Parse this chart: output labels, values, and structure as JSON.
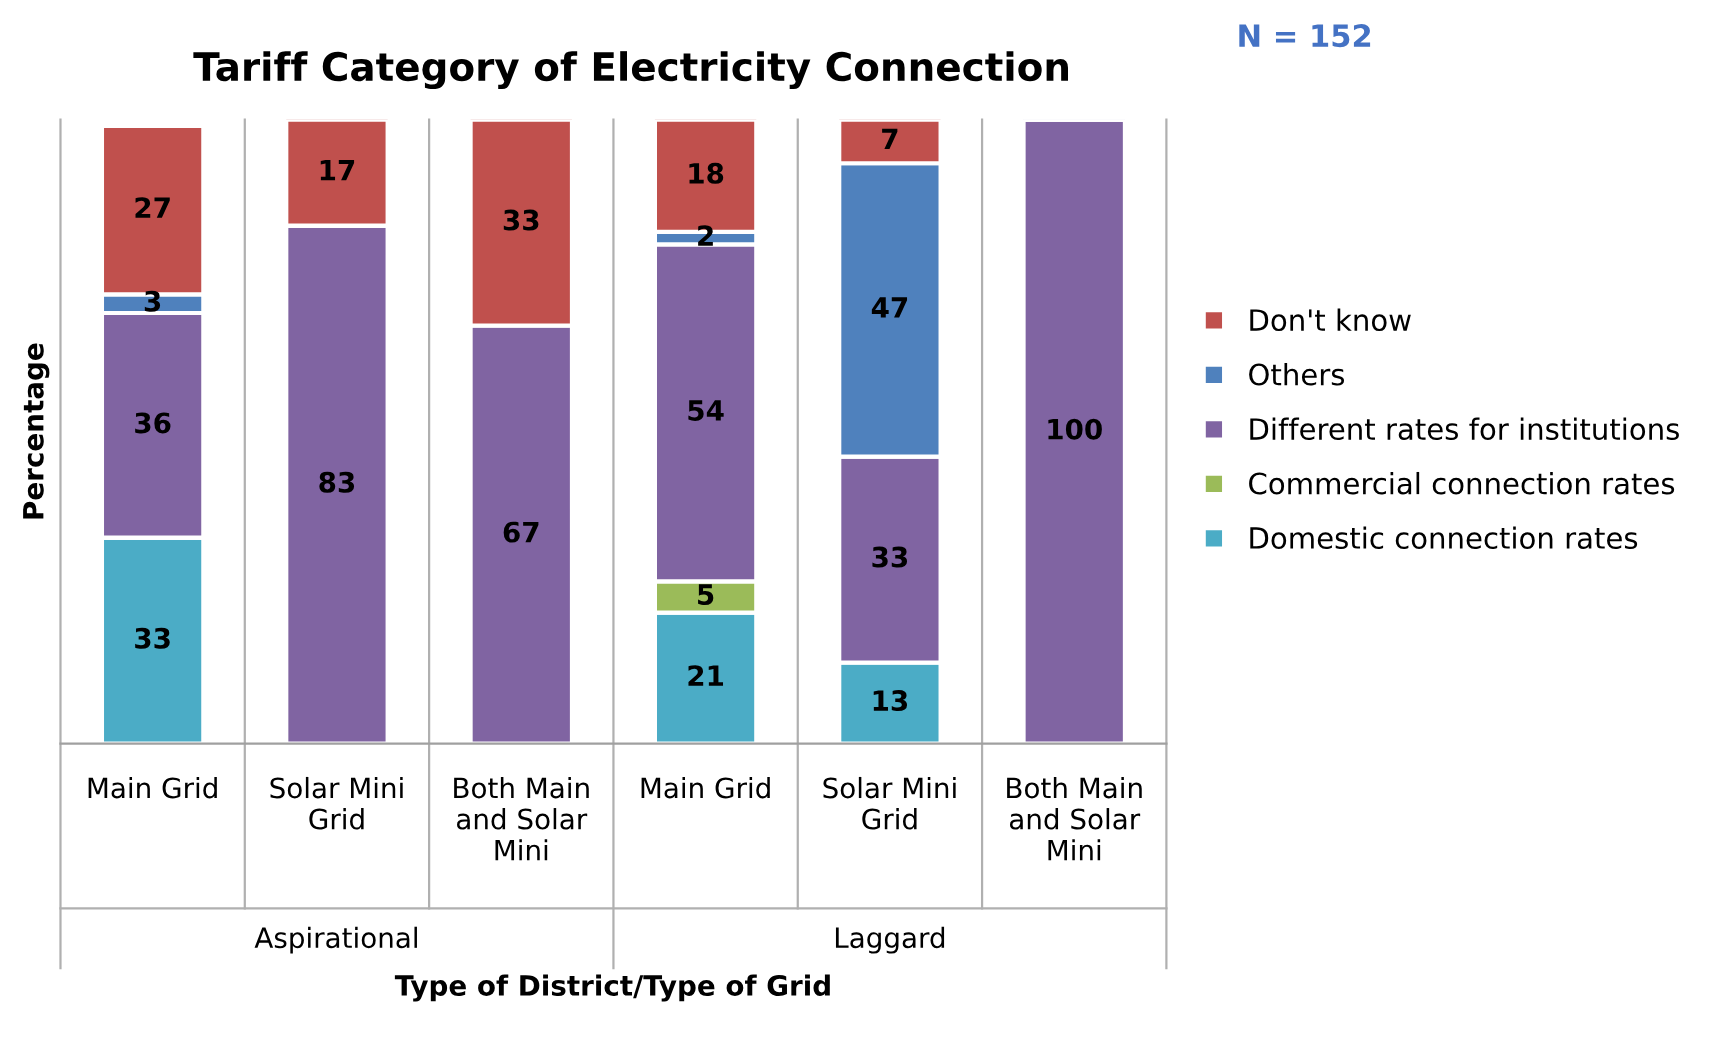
{
  "chart_data": {
    "type": "bar",
    "stacked": true,
    "title": "Tariff Category of Electricity Connection",
    "xlabel": "Type of District/Type of Grid",
    "ylabel": "Percentage",
    "categories": [
      "Main Grid",
      "Solar Mini Grid",
      "Both Main and Solar Mini",
      "Main Grid",
      "Solar Mini Grid",
      "Both Main and Solar Mini"
    ],
    "series": [
      {
        "name": "Domestic connection rates",
        "color": "#4bacc6",
        "values": [
          33,
          null,
          null,
          21,
          13,
          null
        ]
      },
      {
        "name": "Commercial connection rates",
        "color": "#9bbb59",
        "values": [
          null,
          null,
          null,
          5,
          null,
          null
        ]
      },
      {
        "name": "Different rates for institutions",
        "color": "#8064a2",
        "values": [
          36,
          83,
          67,
          54,
          33,
          100
        ]
      },
      {
        "name": "Others",
        "color": "#4f81bd",
        "values": [
          3,
          null,
          null,
          2,
          47,
          null
        ]
      },
      {
        "name": "Don't know",
        "color": "#c0504d",
        "values": [
          27,
          17,
          33,
          18,
          7,
          null
        ]
      }
    ],
    "ylim": [
      0,
      100
    ],
    "tick_labels": "x",
    "data_labels": true,
    "legend": "right",
    "grid": false,
    "annotations": [
      "N = 152",
      "Aspirational",
      "Laggard"
    ]
  }
}
